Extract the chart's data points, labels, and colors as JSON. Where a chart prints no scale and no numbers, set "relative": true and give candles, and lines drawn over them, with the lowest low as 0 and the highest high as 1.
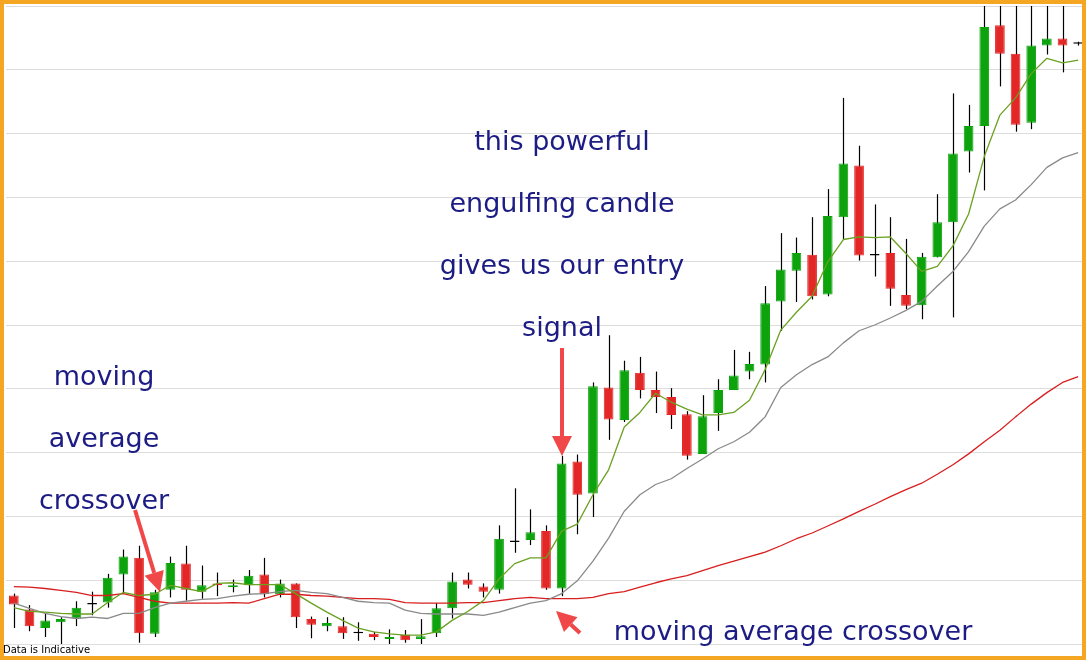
{
  "chart_data": {
    "type": "candlestick",
    "relative": true,
    "grid": "y",
    "marker": "none",
    "annotations": [
      "this powerful engulfing candle gives us our entry signal",
      "moving average crossover",
      "moving average crossover",
      "Data is Indicative"
    ],
    "categories": [
      null,
      null,
      null,
      null,
      null,
      null,
      null,
      null,
      null,
      null,
      null,
      null,
      null,
      null,
      null,
      null,
      null,
      null,
      null,
      null,
      null,
      null,
      null,
      null,
      null,
      null,
      null,
      null,
      null,
      null,
      null,
      null,
      null,
      null,
      null,
      null,
      null,
      null,
      null,
      null,
      null,
      null,
      null,
      null,
      null,
      null,
      null,
      null,
      null,
      null,
      null,
      null,
      null,
      null,
      null,
      null,
      null,
      null,
      null,
      null,
      null,
      null,
      null,
      null,
      null,
      null,
      null,
      null,
      null
    ],
    "ohlc": [
      [
        0.076,
        0.079,
        0.025,
        0.062
      ],
      [
        0.054,
        0.061,
        0.02,
        0.028
      ],
      [
        0.025,
        0.048,
        0.011,
        0.037
      ],
      [
        0.034,
        0.042,
        0,
        0.039
      ],
      [
        0.04,
        0.067,
        0.028,
        0.057
      ],
      [
        0.062,
        0.082,
        0.045,
        0.062
      ],
      [
        0.065,
        0.11,
        0.057,
        0.104
      ],
      [
        0.109,
        0.148,
        0.079,
        0.137
      ],
      [
        0.135,
        0.154,
        0.002,
        0.017
      ],
      [
        0.016,
        0.085,
        0.011,
        0.081
      ],
      [
        0.085,
        0.137,
        0.073,
        0.127
      ],
      [
        0.126,
        0.154,
        0.068,
        0.085
      ],
      [
        0.082,
        0.123,
        0.071,
        0.092
      ],
      [
        0.095,
        0.112,
        0.075,
        0.092
      ],
      [
        0.089,
        0.101,
        0.081,
        0.092
      ],
      [
        0.092,
        0.116,
        0.079,
        0.107
      ],
      [
        0.109,
        0.135,
        0.073,
        0.078
      ],
      [
        0.078,
        0.101,
        0.073,
        0.095
      ],
      [
        0.095,
        0.095,
        0.025,
        0.042
      ],
      [
        0.039,
        0.043,
        0.009,
        0.03
      ],
      [
        0.028,
        0.042,
        0.02,
        0.033
      ],
      [
        0.028,
        0.042,
        0.008,
        0.017
      ],
      [
        0.017,
        0.034,
        0.005,
        0.017
      ],
      [
        0.016,
        0.019,
        0.006,
        0.011
      ],
      [
        0.008,
        0.023,
        0,
        0.011
      ],
      [
        0.014,
        0.022,
        0.002,
        0.006
      ],
      [
        0.008,
        0.039,
        0,
        0.012
      ],
      [
        0.017,
        0.064,
        0.011,
        0.056
      ],
      [
        0.056,
        0.112,
        0.04,
        0.098
      ],
      [
        0.101,
        0.112,
        0.087,
        0.093
      ],
      [
        0.09,
        0.095,
        0.073,
        0.082
      ],
      [
        0.085,
        0.186,
        0.079,
        0.165
      ],
      [
        0.16,
        0.244,
        0.143,
        0.16
      ],
      [
        0.163,
        0.211,
        0.155,
        0.175
      ],
      [
        0.177,
        0.186,
        0.085,
        0.087
      ],
      [
        0.087,
        0.295,
        0.075,
        0.283
      ],
      [
        0.286,
        0.297,
        0.172,
        0.234
      ],
      [
        0.236,
        0.41,
        0.199,
        0.404
      ],
      [
        0.402,
        0.484,
        0.32,
        0.352
      ],
      [
        0.351,
        0.444,
        0.348,
        0.429
      ],
      [
        0.425,
        0.45,
        0.385,
        0.398
      ],
      [
        0.398,
        0.427,
        0.362,
        0.387
      ],
      [
        0.387,
        0.401,
        0.337,
        0.359
      ],
      [
        0.36,
        0.365,
        0.289,
        0.295
      ],
      [
        0.298,
        0.39,
        0.298,
        0.357
      ],
      [
        0.362,
        0.415,
        0.334,
        0.398
      ],
      [
        0.398,
        0.461,
        0.398,
        0.421
      ],
      [
        0.427,
        0.458,
        0.415,
        0.439
      ],
      [
        0.438,
        0.561,
        0.41,
        0.534
      ],
      [
        0.537,
        0.644,
        0.491,
        0.587
      ],
      [
        0.585,
        0.637,
        0.536,
        0.613
      ],
      [
        0.61,
        0.669,
        0.54,
        0.545
      ],
      [
        0.548,
        0.713,
        0.545,
        0.671
      ],
      [
        0.669,
        0.856,
        0.634,
        0.753
      ],
      [
        0.75,
        0.781,
        0.601,
        0.609
      ],
      [
        0.609,
        0.689,
        0.576,
        0.609
      ],
      [
        0.613,
        0.669,
        0.53,
        0.557
      ],
      [
        0.547,
        0.635,
        0.525,
        0.53
      ],
      [
        0.531,
        0.613,
        0.509,
        0.607
      ],
      [
        0.606,
        0.705,
        0.606,
        0.661
      ],
      [
        0.661,
        0.863,
        0.512,
        0.769
      ],
      [
        0.772,
        0.845,
        0.739,
        0.812
      ],
      [
        0.812,
        1,
        0.711,
        0.967
      ],
      [
        0.97,
        1,
        0.874,
        0.925
      ],
      [
        0.925,
        1,
        0.803,
        0.814
      ],
      [
        0.817,
        1,
        0.807,
        0.938
      ],
      [
        0.938,
        1,
        0.924,
        0.949
      ],
      [
        0.949,
        1,
        0.896,
        0.938
      ],
      [
        0.941,
        0.944,
        0.938,
        0.941
      ]
    ],
    "colors": [
      "#e32626",
      "#e32626",
      "#0ca30c",
      "#0ca30c",
      "#0ca30c",
      "#000000",
      "#0ca30c",
      "#0ca30c",
      "#e32626",
      "#0ca30c",
      "#0ca30c",
      "#e32626",
      "#0ca30c",
      "#e32626",
      "#0ca30c",
      "#0ca30c",
      "#e32626",
      "#0ca30c",
      "#e32626",
      "#e32626",
      "#0ca30c",
      "#e32626",
      "#000000",
      "#e32626",
      "#0ca30c",
      "#e32626",
      "#0ca30c",
      "#0ca30c",
      "#0ca30c",
      "#e32626",
      "#e32626",
      "#0ca30c",
      "#000000",
      "#0ca30c",
      "#e32626",
      "#0ca30c",
      "#e32626",
      "#0ca30c",
      "#e32626",
      "#0ca30c",
      "#e32626",
      "#e32626",
      "#e32626",
      "#e32626",
      "#0ca30c",
      "#0ca30c",
      "#0ca30c",
      "#0ca30c",
      "#0ca30c",
      "#0ca30c",
      "#0ca30c",
      "#e32626",
      "#0ca30c",
      "#0ca30c",
      "#e32626",
      "#000000",
      "#e32626",
      "#e32626",
      "#0ca30c",
      "#0ca30c",
      "#0ca30c",
      "#0ca30c",
      "#0ca30c",
      "#e32626",
      "#e32626",
      "#0ca30c",
      "#0ca30c",
      "#e32626",
      "#000000"
    ],
    "series": [
      {
        "type": "line",
        "color": "#6aa121",
        "values": [
          0.057,
          0.051,
          0.05,
          0.048,
          0.047,
          0.047,
          0.065,
          0.081,
          0.076,
          0.078,
          0.092,
          0.087,
          0.082,
          0.095,
          0.096,
          0.093,
          0.093,
          0.093,
          0.079,
          0.064,
          0.05,
          0.037,
          0.025,
          0.019,
          0.016,
          0.014,
          0.014,
          0.019,
          0.037,
          0.051,
          0.068,
          0.102,
          0.126,
          0.135,
          0.135,
          0.177,
          0.188,
          0.234,
          0.273,
          0.34,
          0.363,
          0.393,
          0.379,
          0.368,
          0.359,
          0.359,
          0.363,
          0.382,
          0.43,
          0.492,
          0.52,
          0.545,
          0.599,
          0.634,
          0.638,
          0.637,
          0.638,
          0.612,
          0.584,
          0.592,
          0.624,
          0.674,
          0.764,
          0.829,
          0.856,
          0.894,
          0.918,
          0.911,
          0.915
        ]
      },
      {
        "type": "line",
        "color": "#8a8a8a",
        "values": [
          0.064,
          0.056,
          0.048,
          0.043,
          0.04,
          0.042,
          0.04,
          0.048,
          0.048,
          0.057,
          0.064,
          0.067,
          0.07,
          0.071,
          0.075,
          0.078,
          0.079,
          0.082,
          0.084,
          0.081,
          0.079,
          0.073,
          0.067,
          0.065,
          0.064,
          0.053,
          0.048,
          0.047,
          0.047,
          0.047,
          0.045,
          0.05,
          0.057,
          0.064,
          0.068,
          0.079,
          0.099,
          0.13,
          0.166,
          0.208,
          0.234,
          0.25,
          0.259,
          0.275,
          0.29,
          0.306,
          0.317,
          0.332,
          0.356,
          0.402,
          0.422,
          0.438,
          0.45,
          0.472,
          0.491,
          0.5,
          0.511,
          0.523,
          0.537,
          0.561,
          0.584,
          0.615,
          0.655,
          0.682,
          0.696,
          0.72,
          0.747,
          0.762,
          0.77
        ]
      },
      {
        "type": "line",
        "color": "#d81e1e",
        "values": [
          0.09,
          0.089,
          0.087,
          0.084,
          0.081,
          0.076,
          0.076,
          0.079,
          0.073,
          0.067,
          0.064,
          0.064,
          0.064,
          0.064,
          0.065,
          0.064,
          0.071,
          0.078,
          0.078,
          0.076,
          0.075,
          0.073,
          0.071,
          0.071,
          0.07,
          0.065,
          0.064,
          0.064,
          0.064,
          0.065,
          0.065,
          0.068,
          0.071,
          0.073,
          0.071,
          0.071,
          0.071,
          0.073,
          0.079,
          0.082,
          0.089,
          0.096,
          0.102,
          0.107,
          0.115,
          0.123,
          0.13,
          0.137,
          0.144,
          0.154,
          0.165,
          0.174,
          0.185,
          0.196,
          0.208,
          0.219,
          0.231,
          0.242,
          0.252,
          0.266,
          0.281,
          0.298,
          0.317,
          0.335,
          0.356,
          0.376,
          0.394,
          0.41,
          0.419
        ]
      }
    ]
  }
}
